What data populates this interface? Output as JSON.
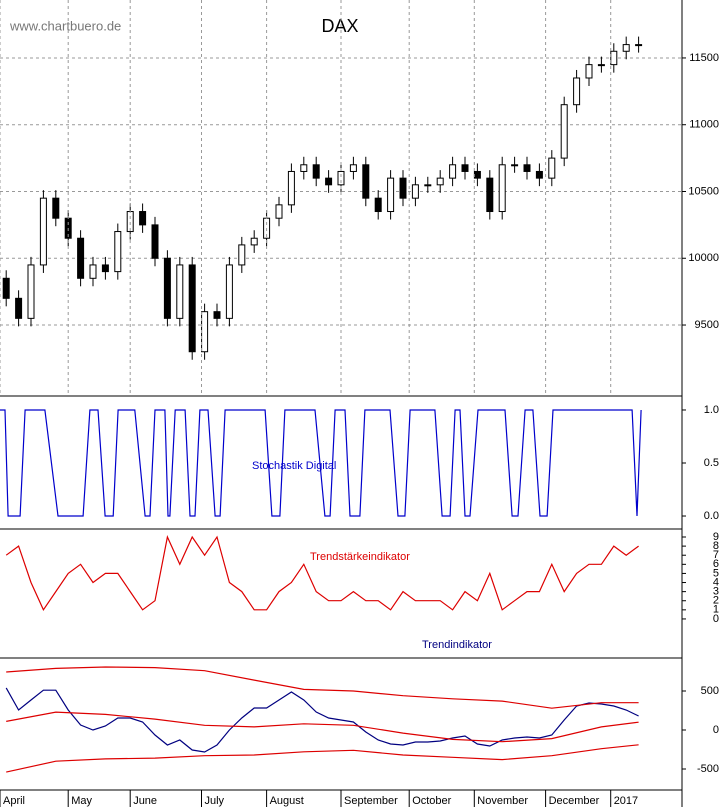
{
  "source": "www.chartbuero.de",
  "chart_data": [
    {
      "type": "candlestick",
      "title": "DAX",
      "x": [
        2,
        6,
        10,
        14,
        18,
        22,
        26,
        30,
        34,
        38,
        42,
        46,
        50,
        54,
        58,
        62,
        66,
        70,
        74,
        78,
        82,
        86,
        90,
        94,
        98,
        102,
        106,
        110,
        114,
        118,
        122,
        126,
        130,
        134,
        138,
        142,
        146,
        150,
        154,
        158,
        162,
        166,
        170,
        174,
        178,
        182,
        186,
        190,
        194,
        198,
        202,
        206
      ],
      "open": [
        9850,
        9700,
        9550,
        9950,
        10450,
        10300,
        10150,
        9850,
        9950,
        9900,
        10200,
        10350,
        10250,
        10000,
        9550,
        9950,
        9300,
        9600,
        9550,
        9950,
        10100,
        10150,
        10300,
        10400,
        10650,
        10700,
        10600,
        10550,
        10650,
        10700,
        10450,
        10350,
        10600,
        10450,
        10550,
        10550,
        10600,
        10700,
        10650,
        10600,
        10350,
        10700,
        10700,
        10650,
        10600,
        10750,
        11150,
        11350,
        11450,
        11450,
        11550,
        11600
      ],
      "high": [
        9910,
        9760,
        10010,
        10510,
        10510,
        10360,
        10210,
        10010,
        10010,
        10260,
        10410,
        10410,
        10310,
        10060,
        10010,
        10010,
        9660,
        9660,
        10010,
        10160,
        10210,
        10360,
        10460,
        10710,
        10760,
        10760,
        10660,
        10710,
        10760,
        10760,
        10510,
        10660,
        10660,
        10610,
        10610,
        10660,
        10760,
        10760,
        10710,
        10660,
        10760,
        10760,
        10760,
        10710,
        10810,
        11210,
        11410,
        11510,
        11510,
        11610,
        11660,
        11660
      ],
      "low": [
        9640,
        9490,
        9490,
        9890,
        10240,
        10090,
        9790,
        9790,
        9840,
        9840,
        10140,
        10190,
        9940,
        9490,
        9490,
        9240,
        9240,
        9490,
        9490,
        9890,
        10040,
        10090,
        10240,
        10340,
        10590,
        10540,
        10490,
        10490,
        10590,
        10390,
        10290,
        10290,
        10390,
        10390,
        10490,
        10490,
        10540,
        10590,
        10540,
        10290,
        10290,
        10640,
        10590,
        10540,
        10540,
        10690,
        11090,
        11290,
        11390,
        11390,
        11490,
        11540
      ],
      "close": [
        9700,
        9550,
        9950,
        10450,
        10300,
        10150,
        9850,
        9950,
        9900,
        10200,
        10350,
        10250,
        10000,
        9550,
        9950,
        9300,
        9600,
        9550,
        9950,
        10100,
        10150,
        10300,
        10400,
        10650,
        10700,
        10600,
        10550,
        10650,
        10700,
        10450,
        10350,
        10600,
        10450,
        10550,
        10550,
        10600,
        10700,
        10650,
        10600,
        10350,
        10700,
        10700,
        10650,
        10600,
        10750,
        11150,
        11350,
        11450,
        11450,
        11550,
        11600,
        11600
      ],
      "color": "#000000",
      "xlim": [
        0,
        220
      ],
      "ylim": [
        8976,
        11934
      ],
      "yticks": [
        9500,
        10000,
        10500,
        11000,
        11500
      ],
      "grid": true
    },
    {
      "type": "line",
      "title": "Stochastik Digital",
      "color": "#0000cc",
      "x": [
        0,
        1.6,
        2.6,
        6.5,
        8.1,
        14.5,
        18.7,
        26.8,
        29,
        31.6,
        33.9,
        36.5,
        38.1,
        43.5,
        46.8,
        48.4,
        50,
        53.2,
        54.2,
        54.8,
        56.5,
        59.7,
        61.3,
        62.9,
        64.5,
        67.1,
        69.4,
        71,
        72.6,
        85.5,
        87.7,
        90.3,
        91.9,
        101.6,
        104.8,
        106.5,
        108.1,
        111.3,
        112.9,
        116.1,
        117.7,
        125.8,
        128.4,
        130.6,
        132.3,
        140.3,
        142.6,
        145.2,
        146.8,
        148.4,
        150,
        151.6,
        154.2,
        162.9,
        165.2,
        167.1,
        169.4,
        171.9,
        174.2,
        176.5,
        178.4,
        203.9,
        205.5,
        206.8
      ],
      "values": [
        1,
        1,
        0,
        0,
        1,
        1,
        0,
        0,
        1,
        1,
        0,
        0,
        1,
        1,
        0,
        0,
        1,
        1,
        0,
        0,
        1,
        1,
        0,
        0,
        1,
        1,
        0,
        0,
        1,
        1,
        0,
        0,
        1,
        1,
        0,
        0,
        1,
        1,
        0,
        0,
        1,
        1,
        0,
        0,
        1,
        1,
        0,
        0,
        1,
        1,
        0,
        0,
        1,
        1,
        0,
        0,
        1,
        1,
        0,
        0,
        1,
        1,
        0,
        1
      ],
      "xlim": [
        0,
        220
      ],
      "ylim": [
        -0.113,
        1.113
      ],
      "yticks": [
        {
          "value": 0,
          "label": "0.0"
        },
        {
          "value": 0.5,
          "label": "0.5"
        },
        {
          "value": 1,
          "label": "1.0"
        }
      ]
    },
    {
      "type": "line",
      "title": "Trendstärkeindikator",
      "color": "#dd0000",
      "x": [
        2,
        6,
        10,
        14,
        18,
        22,
        26,
        30,
        34,
        38,
        42,
        46,
        50,
        54,
        58,
        62,
        66,
        70,
        74,
        78,
        82,
        86,
        90,
        94,
        98,
        102,
        106,
        110,
        114,
        118,
        122,
        126,
        130,
        134,
        138,
        142,
        146,
        150,
        154,
        158,
        162,
        166,
        170,
        174,
        178,
        182,
        186,
        190,
        194,
        198,
        202,
        206
      ],
      "values": [
        7,
        8,
        4,
        1,
        3,
        5,
        6,
        4,
        5,
        5,
        3,
        1,
        2,
        9,
        6,
        9,
        7,
        9,
        4,
        3,
        1,
        1,
        3,
        4,
        6,
        3,
        2,
        2,
        3,
        2,
        2,
        1,
        3,
        2,
        2,
        2,
        1,
        3,
        2,
        5,
        1,
        2,
        3,
        3,
        6,
        3,
        5,
        6,
        6,
        8,
        7,
        8
      ],
      "xlim": [
        0,
        220
      ],
      "ylim": [
        -4.18,
        9.77
      ],
      "yticks": [
        0,
        1,
        2,
        3,
        4,
        5,
        6,
        7,
        8,
        9
      ]
    },
    {
      "type": "line",
      "title": "Trendindikator",
      "x": [
        2,
        6,
        10,
        14,
        18,
        22,
        26,
        30,
        34,
        38,
        42,
        46,
        50,
        54,
        58,
        62,
        66,
        70,
        74,
        78,
        82,
        86,
        90,
        94,
        98,
        102,
        106,
        110,
        114,
        118,
        122,
        126,
        130,
        134,
        138,
        142,
        146,
        150,
        154,
        158,
        162,
        166,
        170,
        174,
        178,
        182,
        186,
        190,
        194,
        198,
        202,
        206
      ],
      "series": [
        {
          "color": "#000080",
          "values": [
            540,
            256,
            385,
            510,
            510,
            256,
            64,
            0,
            51,
            154,
            154,
            103,
            -64,
            -192,
            -128,
            -256,
            -282,
            -192,
            0,
            154,
            282,
            282,
            385,
            487,
            385,
            231,
            154,
            128,
            103,
            -26,
            -128,
            -179,
            -192,
            -154,
            -154,
            -141,
            -103,
            -77,
            -179,
            -205,
            -128,
            -103,
            -90,
            -103,
            -64,
            128,
            308,
            346,
            333,
            308,
            256,
            179
          ]
        },
        {
          "color": "#dd0000",
          "x": [
            2,
            18,
            34,
            50,
            66,
            82,
            98,
            114,
            130,
            146,
            162,
            178,
            194,
            206
          ],
          "values": [
            744,
            790,
            808,
            800,
            760,
            640,
            520,
            500,
            440,
            400,
            370,
            280,
            350,
            350
          ]
        },
        {
          "color": "#dd0000",
          "x": [
            2,
            18,
            34,
            50,
            66,
            82,
            98,
            114,
            130,
            146,
            162,
            178,
            194,
            206
          ],
          "values": [
            110,
            230,
            200,
            140,
            60,
            40,
            80,
            60,
            -40,
            -120,
            -150,
            -110,
            40,
            100
          ]
        },
        {
          "color": "#dd0000",
          "x": [
            2,
            18,
            34,
            50,
            66,
            82,
            98,
            114,
            130,
            146,
            162,
            178,
            194,
            206
          ],
          "values": [
            -540,
            -400,
            -370,
            -360,
            -330,
            -320,
            -280,
            -260,
            -320,
            -350,
            -380,
            -330,
            -240,
            -190
          ]
        }
      ],
      "xlim": [
        0,
        220
      ],
      "ylim": [
        -769,
        910
      ],
      "yticks": [
        -500,
        0,
        500
      ],
      "xticks": [
        {
          "value": 0,
          "label": "April"
        },
        {
          "value": 22,
          "label": "May"
        },
        {
          "value": 42,
          "label": "June"
        },
        {
          "value": 65,
          "label": "July"
        },
        {
          "value": 86,
          "label": "August"
        },
        {
          "value": 110,
          "label": "September"
        },
        {
          "value": 132,
          "label": "October"
        },
        {
          "value": 153,
          "label": "November"
        },
        {
          "value": 176,
          "label": "December"
        },
        {
          "value": 197,
          "label": "2017"
        }
      ]
    }
  ]
}
